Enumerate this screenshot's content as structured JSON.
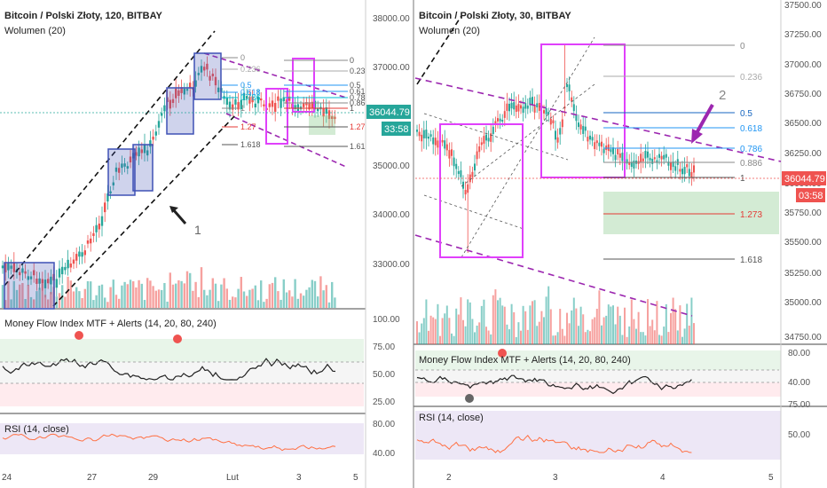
{
  "left_chart": {
    "title": "Bitcoin / Polski Złoty, 120, BITBAY",
    "volume_label": "Wolumen (20)",
    "price_axis": [
      "38000.00",
      "37000.00",
      "36000.00",
      "35000.00",
      "34000.00",
      "33000.00"
    ],
    "price_tag": "36044.79",
    "timer": "33:58",
    "fib_levels": [
      "0",
      "0.236",
      "0.5",
      "0.618",
      "0.786",
      "1",
      "1.27",
      "1.618"
    ],
    "fib_levels_right": [
      "0",
      "0.23",
      "0.5",
      "0.61",
      "0.78",
      "0.86",
      "1",
      "1.27",
      "1.61"
    ],
    "annotation": "1",
    "mfi_label": "Money Flow Index MTF + Alerts (14, 20, 80, 240)",
    "mfi_axis": [
      "100.00",
      "75.00",
      "50.00",
      "25.00"
    ],
    "rsi_label": "RSI (14, close)",
    "rsi_axis": [
      "80.00",
      "40.00"
    ],
    "time_axis": [
      "24",
      "27",
      "29",
      "Lut",
      "3",
      "5"
    ]
  },
  "right_chart": {
    "title": "Bitcoin / Polski Złoty, 30, BITBAY",
    "volume_label": "Wolumen (20)",
    "price_axis": [
      "37500.00",
      "37250.00",
      "37000.00",
      "36750.00",
      "36500.00",
      "36250.00",
      "36000.00",
      "35750.00",
      "35500.00",
      "35250.00",
      "35000.00",
      "34750.00"
    ],
    "price_tag": "36044.79",
    "timer": "03:58",
    "fib_levels": [
      "0",
      "0.236",
      "0.5",
      "0.618",
      "0.786",
      "0.886",
      "1",
      "1.273",
      "1.618"
    ],
    "annotation": "2",
    "mfi_label": "Money Flow Index MTF + Alerts (14, 20, 80, 240)",
    "mfi_axis": [
      "80.00",
      "40.00"
    ],
    "rsi_label": "RSI (14, close)",
    "rsi_axis": [
      "75.00",
      "50.00"
    ],
    "time_axis": [
      "2",
      "3",
      "4",
      "5"
    ]
  },
  "colors": {
    "up": "#26a69a",
    "down": "#ef5350",
    "box_blue": "#3f51b5",
    "box_magenta": "#e040fb",
    "channel": "#9c27b0",
    "price_tag_bg": "#26a69a"
  }
}
